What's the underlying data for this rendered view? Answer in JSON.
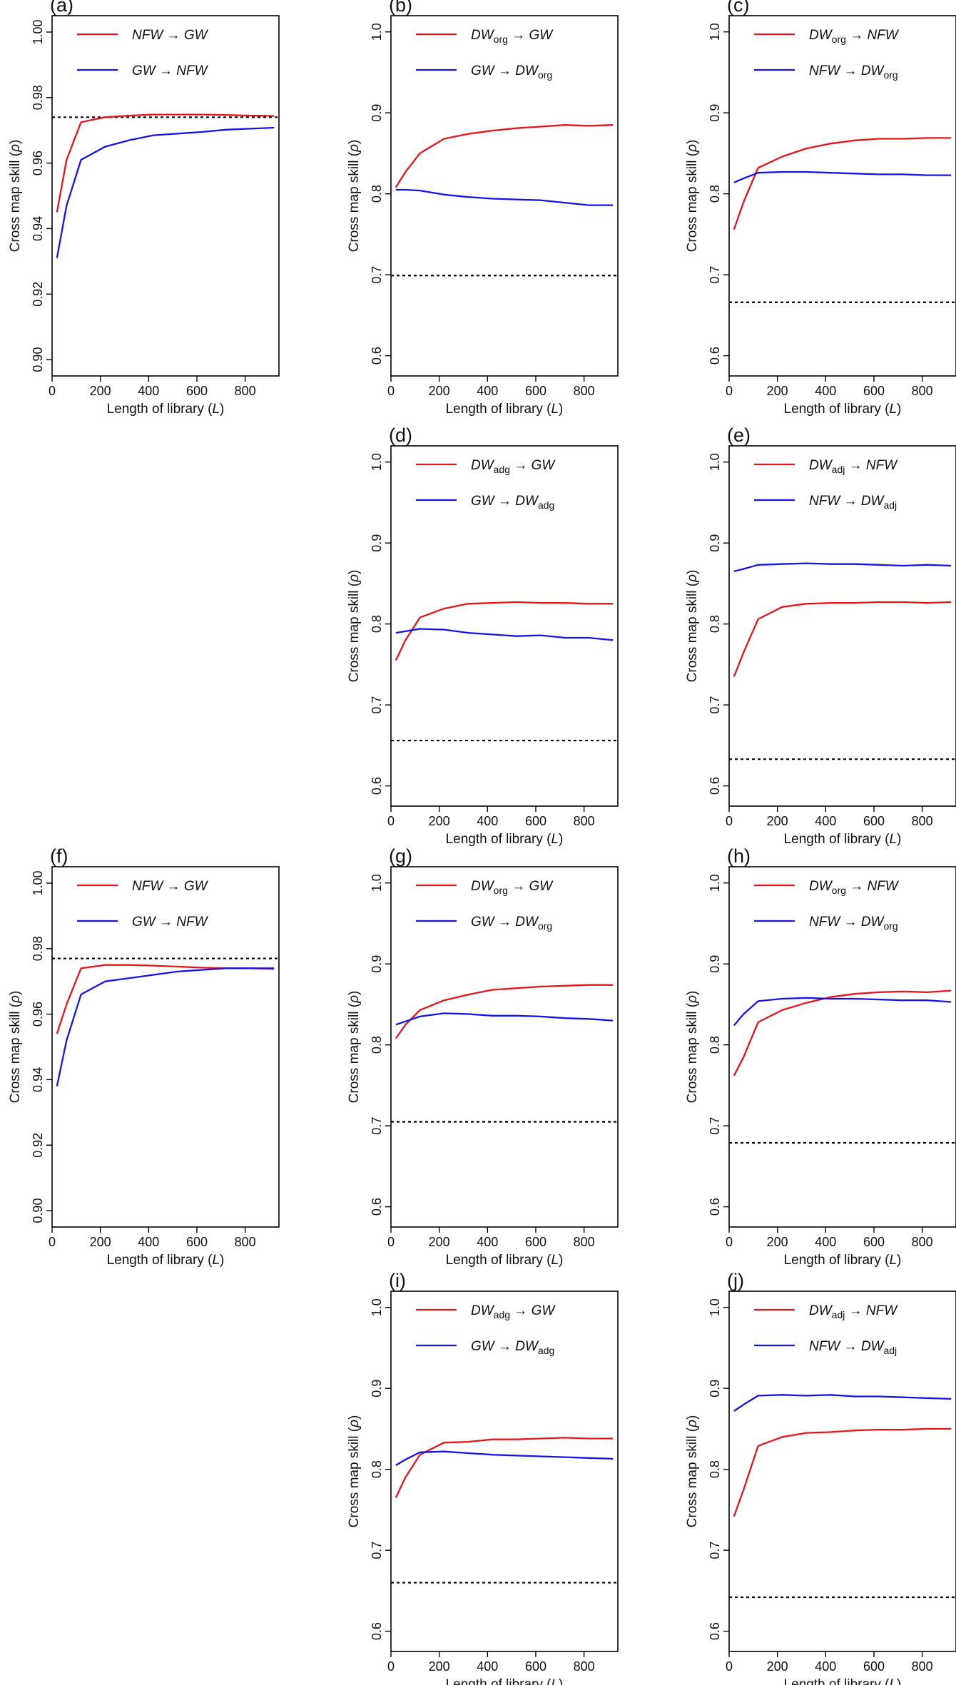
{
  "figure": {
    "description_label": "Convergent cross mapping skill panels",
    "colors": {
      "red": "#e8141b",
      "blue": "#1414e8",
      "threshold": "#000000",
      "frame": "#000000"
    }
  },
  "chart_data": [
    {
      "panel": "(a)",
      "type": "line",
      "xlabel_text": "Length of library (",
      "xlabel_var": "L",
      "xlabel_end": ")",
      "ylabel_text": "Cross map skill (",
      "ylabel_var": "ρ",
      "ylabel_end": ")",
      "xlim": [
        0,
        940
      ],
      "ylim": [
        0.895,
        1.005
      ],
      "xticks": [
        0,
        200,
        400,
        600,
        800
      ],
      "xtick_labels": [
        "0",
        "200",
        "400",
        "600",
        "800"
      ],
      "yticks": [
        0.9,
        0.92,
        0.94,
        0.96,
        0.98,
        1.0
      ],
      "ytick_labels": [
        "0.90",
        "0.92",
        "0.94",
        "0.96",
        "0.98",
        "1.00"
      ],
      "threshold": 0.974,
      "x": [
        20,
        60,
        120,
        220,
        320,
        420,
        520,
        620,
        720,
        820,
        920
      ],
      "series": [
        {
          "color": "red",
          "legend": [
            {
              "t": "NFW"
            },
            {
              "t": " → GW"
            }
          ],
          "values": [
            0.945,
            0.961,
            0.9725,
            0.974,
            0.9745,
            0.9748,
            0.9748,
            0.9748,
            0.9747,
            0.9745,
            0.9744
          ]
        },
        {
          "color": "blue",
          "legend": [
            {
              "t": "GW"
            },
            {
              "t": " → NFW"
            }
          ],
          "values": [
            0.931,
            0.947,
            0.961,
            0.965,
            0.967,
            0.9685,
            0.969,
            0.9695,
            0.9702,
            0.9705,
            0.9708
          ]
        }
      ]
    },
    {
      "panel": "(b)",
      "type": "line",
      "xlabel_text": "Length of library (",
      "xlabel_var": "L",
      "xlabel_end": ")",
      "ylabel_text": "Cross map skill (",
      "ylabel_var": "ρ",
      "ylabel_end": ")",
      "xlim": [
        0,
        940
      ],
      "ylim": [
        0.575,
        1.02
      ],
      "xticks": [
        0,
        200,
        400,
        600,
        800
      ],
      "xtick_labels": [
        "0",
        "200",
        "400",
        "600",
        "800"
      ],
      "yticks": [
        0.6,
        0.7,
        0.8,
        0.9,
        1.0
      ],
      "ytick_labels": [
        "0.6",
        "0.7",
        "0.8",
        "0.9",
        "1.0"
      ],
      "threshold": 0.699,
      "x": [
        20,
        60,
        120,
        220,
        320,
        420,
        520,
        620,
        720,
        820,
        920
      ],
      "series": [
        {
          "color": "red",
          "legend": [
            {
              "t": "DW"
            },
            {
              "t": "org",
              "sub": true
            },
            {
              "t": " → GW"
            }
          ],
          "values": [
            0.808,
            0.827,
            0.85,
            0.868,
            0.874,
            0.878,
            0.881,
            0.883,
            0.885,
            0.884,
            0.885
          ]
        },
        {
          "color": "blue",
          "legend": [
            {
              "t": "GW → DW"
            },
            {
              "t": "org",
              "sub": true
            }
          ],
          "values": [
            0.805,
            0.805,
            0.804,
            0.799,
            0.796,
            0.794,
            0.793,
            0.792,
            0.789,
            0.786,
            0.786
          ]
        }
      ]
    },
    {
      "panel": "(c)",
      "type": "line",
      "xlabel_text": "Length of library (",
      "xlabel_var": "L",
      "xlabel_end": ")",
      "ylabel_text": "Cross map skill (",
      "ylabel_var": "ρ",
      "ylabel_end": ")",
      "xlim": [
        0,
        940
      ],
      "ylim": [
        0.575,
        1.02
      ],
      "xticks": [
        0,
        200,
        400,
        600,
        800
      ],
      "xtick_labels": [
        "0",
        "200",
        "400",
        "600",
        "800"
      ],
      "yticks": [
        0.6,
        0.7,
        0.8,
        0.9,
        1.0
      ],
      "ytick_labels": [
        "0.6",
        "0.7",
        "0.8",
        "0.9",
        "1.0"
      ],
      "threshold": 0.666,
      "x": [
        20,
        60,
        120,
        220,
        320,
        420,
        520,
        620,
        720,
        820,
        920
      ],
      "series": [
        {
          "color": "red",
          "legend": [
            {
              "t": "DW"
            },
            {
              "t": "org",
              "sub": true
            },
            {
              "t": " → NFW"
            }
          ],
          "values": [
            0.756,
            0.79,
            0.832,
            0.846,
            0.856,
            0.862,
            0.866,
            0.868,
            0.868,
            0.869,
            0.869
          ]
        },
        {
          "color": "blue",
          "legend": [
            {
              "t": "NFW → DW"
            },
            {
              "t": "org",
              "sub": true
            }
          ],
          "values": [
            0.814,
            0.819,
            0.826,
            0.827,
            0.827,
            0.826,
            0.825,
            0.824,
            0.824,
            0.823,
            0.823
          ]
        }
      ]
    },
    {
      "panel": "(d)",
      "type": "line",
      "xlabel_text": "Length of library (",
      "xlabel_var": "L",
      "xlabel_end": ")",
      "ylabel_text": "Cross map skill (",
      "ylabel_var": "ρ",
      "ylabel_end": ")",
      "xlim": [
        0,
        940
      ],
      "ylim": [
        0.575,
        1.02
      ],
      "xticks": [
        0,
        200,
        400,
        600,
        800
      ],
      "xtick_labels": [
        "0",
        "200",
        "400",
        "600",
        "800"
      ],
      "yticks": [
        0.6,
        0.7,
        0.8,
        0.9,
        1.0
      ],
      "ytick_labels": [
        "0.6",
        "0.7",
        "0.8",
        "0.9",
        "1.0"
      ],
      "threshold": 0.656,
      "x": [
        20,
        60,
        120,
        220,
        320,
        420,
        520,
        620,
        720,
        820,
        920
      ],
      "series": [
        {
          "color": "red",
          "legend": [
            {
              "t": "DW"
            },
            {
              "t": "adg",
              "sub": true
            },
            {
              "t": " → GW"
            }
          ],
          "values": [
            0.755,
            0.78,
            0.808,
            0.819,
            0.825,
            0.826,
            0.827,
            0.826,
            0.826,
            0.825,
            0.825
          ]
        },
        {
          "color": "blue",
          "legend": [
            {
              "t": "GW → DW"
            },
            {
              "t": "adg",
              "sub": true
            }
          ],
          "values": [
            0.789,
            0.791,
            0.794,
            0.793,
            0.789,
            0.787,
            0.785,
            0.786,
            0.783,
            0.783,
            0.78
          ]
        }
      ]
    },
    {
      "panel": "(e)",
      "type": "line",
      "xlabel_text": "Length of library (",
      "xlabel_var": "L",
      "xlabel_end": ")",
      "ylabel_text": "Cross map skill (",
      "ylabel_var": "ρ",
      "ylabel_end": ")",
      "xlim": [
        0,
        940
      ],
      "ylim": [
        0.575,
        1.02
      ],
      "xticks": [
        0,
        200,
        400,
        600,
        800
      ],
      "xtick_labels": [
        "0",
        "200",
        "400",
        "600",
        "800"
      ],
      "yticks": [
        0.6,
        0.7,
        0.8,
        0.9,
        1.0
      ],
      "ytick_labels": [
        "0.6",
        "0.7",
        "0.8",
        "0.9",
        "1.0"
      ],
      "threshold": 0.633,
      "x": [
        20,
        60,
        120,
        220,
        320,
        420,
        520,
        620,
        720,
        820,
        920
      ],
      "series": [
        {
          "color": "red",
          "legend": [
            {
              "t": "DW"
            },
            {
              "t": "adj",
              "sub": true
            },
            {
              "t": " → NFW"
            }
          ],
          "values": [
            0.735,
            0.765,
            0.806,
            0.821,
            0.825,
            0.826,
            0.826,
            0.827,
            0.827,
            0.826,
            0.827
          ]
        },
        {
          "color": "blue",
          "legend": [
            {
              "t": "NFW → DW"
            },
            {
              "t": "adj",
              "sub": true
            }
          ],
          "values": [
            0.865,
            0.868,
            0.873,
            0.874,
            0.875,
            0.874,
            0.874,
            0.873,
            0.872,
            0.873,
            0.872
          ]
        }
      ]
    },
    {
      "panel": "(f)",
      "type": "line",
      "xlabel_text": "Length of library (",
      "xlabel_var": "L",
      "xlabel_end": ")",
      "ylabel_text": "Cross map skill (",
      "ylabel_var": "ρ",
      "ylabel_end": ")",
      "xlim": [
        0,
        940
      ],
      "ylim": [
        0.895,
        1.005
      ],
      "xticks": [
        0,
        200,
        400,
        600,
        800
      ],
      "xtick_labels": [
        "0",
        "200",
        "400",
        "600",
        "800"
      ],
      "yticks": [
        0.9,
        0.92,
        0.94,
        0.96,
        0.98,
        1.0
      ],
      "ytick_labels": [
        "0.90",
        "0.92",
        "0.94",
        "0.96",
        "0.98",
        "1.00"
      ],
      "threshold": 0.977,
      "x": [
        20,
        60,
        120,
        220,
        320,
        420,
        520,
        620,
        720,
        820,
        920
      ],
      "series": [
        {
          "color": "red",
          "legend": [
            {
              "t": "NFW"
            },
            {
              "t": " → GW"
            }
          ],
          "values": [
            0.954,
            0.963,
            0.974,
            0.975,
            0.975,
            0.9748,
            0.9745,
            0.9742,
            0.974,
            0.974,
            0.9738
          ]
        },
        {
          "color": "blue",
          "legend": [
            {
              "t": "GW"
            },
            {
              "t": " → NFW"
            }
          ],
          "values": [
            0.938,
            0.952,
            0.966,
            0.97,
            0.971,
            0.972,
            0.973,
            0.9735,
            0.974,
            0.974,
            0.974
          ]
        }
      ]
    },
    {
      "panel": "(g)",
      "type": "line",
      "xlabel_text": "Length of library (",
      "xlabel_var": "L",
      "xlabel_end": ")",
      "ylabel_text": "Cross map skill (",
      "ylabel_var": "ρ",
      "ylabel_end": ")",
      "xlim": [
        0,
        940
      ],
      "ylim": [
        0.575,
        1.02
      ],
      "xticks": [
        0,
        200,
        400,
        600,
        800
      ],
      "xtick_labels": [
        "0",
        "200",
        "400",
        "600",
        "800"
      ],
      "yticks": [
        0.6,
        0.7,
        0.8,
        0.9,
        1.0
      ],
      "ytick_labels": [
        "0.6",
        "0.7",
        "0.8",
        "0.9",
        "1.0"
      ],
      "threshold": 0.705,
      "x": [
        20,
        60,
        120,
        220,
        320,
        420,
        520,
        620,
        720,
        820,
        920
      ],
      "series": [
        {
          "color": "red",
          "legend": [
            {
              "t": "DW"
            },
            {
              "t": "org",
              "sub": true
            },
            {
              "t": " → GW"
            }
          ],
          "values": [
            0.808,
            0.825,
            0.843,
            0.855,
            0.862,
            0.868,
            0.87,
            0.872,
            0.873,
            0.874,
            0.874
          ]
        },
        {
          "color": "blue",
          "legend": [
            {
              "t": "GW → DW"
            },
            {
              "t": "org",
              "sub": true
            }
          ],
          "values": [
            0.825,
            0.829,
            0.835,
            0.839,
            0.838,
            0.836,
            0.836,
            0.835,
            0.833,
            0.832,
            0.83
          ]
        }
      ]
    },
    {
      "panel": "(h)",
      "type": "line",
      "xlabel_text": "Length of library (",
      "xlabel_var": "L",
      "xlabel_end": ")",
      "ylabel_text": "Cross map skill (",
      "ylabel_var": "ρ",
      "ylabel_end": ")",
      "xlim": [
        0,
        940
      ],
      "ylim": [
        0.575,
        1.02
      ],
      "xticks": [
        0,
        200,
        400,
        600,
        800
      ],
      "xtick_labels": [
        "0",
        "200",
        "400",
        "600",
        "800"
      ],
      "yticks": [
        0.6,
        0.7,
        0.8,
        0.9,
        1.0
      ],
      "ytick_labels": [
        "0.6",
        "0.7",
        "0.8",
        "0.9",
        "1.0"
      ],
      "threshold": 0.679,
      "x": [
        20,
        60,
        120,
        220,
        320,
        420,
        520,
        620,
        720,
        820,
        920
      ],
      "series": [
        {
          "color": "red",
          "legend": [
            {
              "t": "DW"
            },
            {
              "t": "org",
              "sub": true
            },
            {
              "t": " → NFW"
            }
          ],
          "values": [
            0.762,
            0.785,
            0.828,
            0.843,
            0.852,
            0.859,
            0.863,
            0.865,
            0.866,
            0.865,
            0.867
          ]
        },
        {
          "color": "blue",
          "legend": [
            {
              "t": "NFW → DW"
            },
            {
              "t": "org",
              "sub": true
            }
          ],
          "values": [
            0.824,
            0.838,
            0.854,
            0.857,
            0.858,
            0.857,
            0.857,
            0.856,
            0.855,
            0.855,
            0.853
          ]
        }
      ]
    },
    {
      "panel": "(i)",
      "type": "line",
      "xlabel_text": "Length of library (",
      "xlabel_var": "L",
      "xlabel_end": ")",
      "ylabel_text": "Cross map skill (",
      "ylabel_var": "ρ",
      "ylabel_end": ")",
      "xlim": [
        0,
        940
      ],
      "ylim": [
        0.575,
        1.02
      ],
      "xticks": [
        0,
        200,
        400,
        600,
        800
      ],
      "xtick_labels": [
        "0",
        "200",
        "400",
        "600",
        "800"
      ],
      "yticks": [
        0.6,
        0.7,
        0.8,
        0.9,
        1.0
      ],
      "ytick_labels": [
        "0.6",
        "0.7",
        "0.8",
        "0.9",
        "1.0"
      ],
      "threshold": 0.66,
      "x": [
        20,
        60,
        120,
        220,
        320,
        420,
        520,
        620,
        720,
        820,
        920
      ],
      "series": [
        {
          "color": "red",
          "legend": [
            {
              "t": "DW"
            },
            {
              "t": "adg",
              "sub": true
            },
            {
              "t": " → GW"
            }
          ],
          "values": [
            0.765,
            0.79,
            0.818,
            0.833,
            0.834,
            0.837,
            0.837,
            0.838,
            0.839,
            0.838,
            0.838
          ]
        },
        {
          "color": "blue",
          "legend": [
            {
              "t": "GW → DW"
            },
            {
              "t": "adg",
              "sub": true
            }
          ],
          "values": [
            0.805,
            0.812,
            0.821,
            0.822,
            0.82,
            0.818,
            0.817,
            0.816,
            0.815,
            0.814,
            0.813
          ]
        }
      ]
    },
    {
      "panel": "(j)",
      "type": "line",
      "xlabel_text": "Length of library (",
      "xlabel_var": "L",
      "xlabel_end": ")",
      "ylabel_text": "Cross map skill (",
      "ylabel_var": "ρ",
      "ylabel_end": ")",
      "xlim": [
        0,
        940
      ],
      "ylim": [
        0.575,
        1.02
      ],
      "xticks": [
        0,
        200,
        400,
        600,
        800
      ],
      "xtick_labels": [
        "0",
        "200",
        "400",
        "600",
        "800"
      ],
      "yticks": [
        0.6,
        0.7,
        0.8,
        0.9,
        1.0
      ],
      "ytick_labels": [
        "0.6",
        "0.7",
        "0.8",
        "0.9",
        "1.0"
      ],
      "threshold": 0.642,
      "x": [
        20,
        60,
        120,
        220,
        320,
        420,
        520,
        620,
        720,
        820,
        920
      ],
      "series": [
        {
          "color": "red",
          "legend": [
            {
              "t": "DW"
            },
            {
              "t": "adj",
              "sub": true
            },
            {
              "t": " → NFW"
            }
          ],
          "values": [
            0.742,
            0.775,
            0.829,
            0.84,
            0.845,
            0.846,
            0.848,
            0.849,
            0.849,
            0.85,
            0.85
          ]
        },
        {
          "color": "blue",
          "legend": [
            {
              "t": "NFW → DW"
            },
            {
              "t": "adj",
              "sub": true
            }
          ],
          "values": [
            0.872,
            0.88,
            0.891,
            0.892,
            0.891,
            0.892,
            0.89,
            0.89,
            0.889,
            0.888,
            0.887
          ]
        }
      ]
    }
  ]
}
